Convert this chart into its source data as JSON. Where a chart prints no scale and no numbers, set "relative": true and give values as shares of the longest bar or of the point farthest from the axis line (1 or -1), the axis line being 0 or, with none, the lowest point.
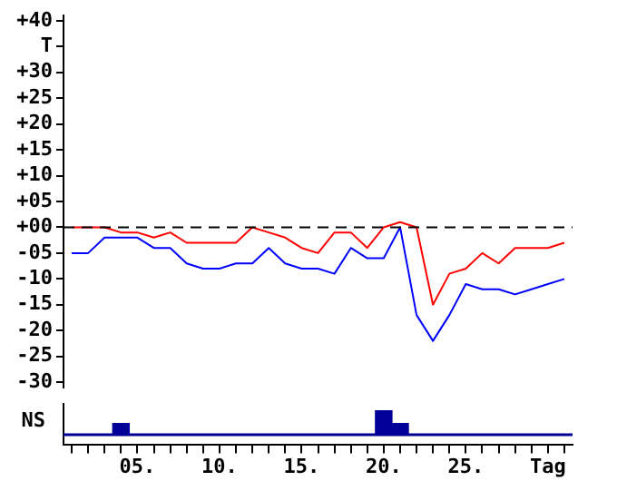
{
  "chart_data": [
    {
      "type": "line",
      "categories": [
        null,
        null,
        null,
        null,
        null,
        null,
        null,
        null,
        null,
        null,
        null,
        null,
        null,
        null,
        null,
        null,
        null,
        null,
        null,
        null,
        null,
        null,
        null,
        null,
        null,
        null,
        null,
        null,
        null,
        null,
        null
      ],
      "series": [
        {
          "color": "#ff0000",
          "values": [
            0,
            0,
            0,
            -1,
            -1,
            -2,
            -1,
            -3,
            -3,
            -3,
            -3,
            0,
            -1,
            -2,
            -4,
            -5,
            -1,
            -1,
            -4,
            0,
            1,
            0,
            -15,
            -9,
            -8,
            -5,
            -7,
            -4,
            -4,
            -4,
            -3
          ]
        },
        {
          "color": "#0000ff",
          "values": [
            -5,
            -5,
            -2,
            -2,
            -2,
            -4,
            -4,
            -7,
            -8,
            -8,
            -7,
            -7,
            -4,
            -7,
            -8,
            -8,
            -9,
            -4,
            -6,
            -6,
            0,
            -17,
            -22,
            -17,
            -11,
            -12,
            -12,
            -13,
            -12,
            -11,
            -10
          ]
        }
      ],
      "ylim": [
        -31,
        41
      ],
      "yticks": [
        {
          "value": 40,
          "label": "+40"
        },
        {
          "value": 35,
          "label": "T"
        },
        {
          "value": 30,
          "label": "+30"
        },
        {
          "value": 25,
          "label": "+25"
        },
        {
          "value": 20,
          "label": "+20"
        },
        {
          "value": 15,
          "label": "+15"
        },
        {
          "value": 10,
          "label": "+10"
        },
        {
          "value": 5,
          "label": "+05"
        },
        {
          "value": 0,
          "label": "+00"
        },
        {
          "value": -5,
          "label": "-05"
        },
        {
          "value": -10,
          "label": "-10"
        },
        {
          "value": -15,
          "label": "-15"
        },
        {
          "value": -20,
          "label": "-20"
        },
        {
          "value": -25,
          "label": "-25"
        },
        {
          "value": -30,
          "label": "-30"
        }
      ],
      "ref_lines": [
        {
          "axis": "y",
          "value": 0,
          "color": "#000000",
          "line_style": "dashed"
        }
      ],
      "tick_labels": "y"
    },
    {
      "type": "bar",
      "ylabel": "NS",
      "relative": true,
      "categories": [
        null,
        null,
        null,
        null,
        "05.",
        null,
        null,
        null,
        null,
        "10.",
        null,
        null,
        null,
        null,
        "15.",
        null,
        null,
        null,
        null,
        "20.",
        null,
        null,
        null,
        null,
        "25.",
        null,
        null,
        null,
        null,
        "Tag",
        null
      ],
      "values": [
        0,
        0,
        0,
        0.47,
        0,
        0,
        0,
        0,
        0,
        0,
        0,
        0,
        0,
        0,
        0,
        0,
        0,
        0,
        0,
        1,
        0.47,
        0,
        0,
        0,
        0,
        0,
        0,
        0,
        0,
        0,
        0
      ],
      "color": "#000099"
    }
  ]
}
